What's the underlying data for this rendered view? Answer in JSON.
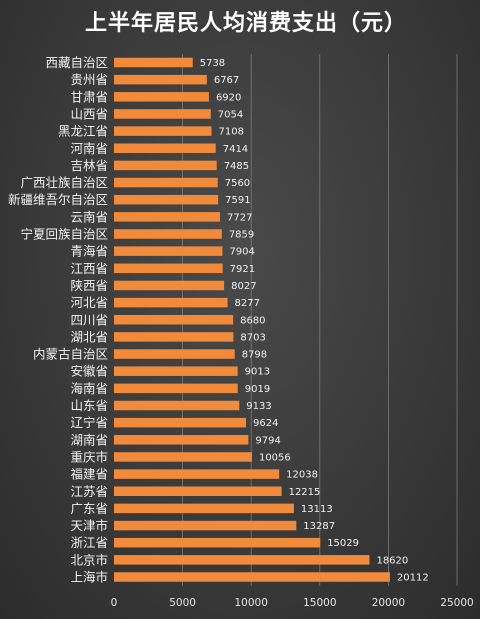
{
  "chart_data": {
    "type": "bar",
    "orientation": "horizontal",
    "title": "上半年居民人均消费支出（元）",
    "categories": [
      "西藏自治区",
      "贵州省",
      "甘肃省",
      "山西省",
      "黑龙江省",
      "河南省",
      "吉林省",
      "广西壮族自治区",
      "新疆维吾尔自治区",
      "云南省",
      "宁夏回族自治区",
      "青海省",
      "江西省",
      "陕西省",
      "河北省",
      "四川省",
      "湖北省",
      "内蒙古自治区",
      "安徽省",
      "海南省",
      "山东省",
      "辽宁省",
      "湖南省",
      "重庆市",
      "福建省",
      "江苏省",
      "广东省",
      "天津市",
      "浙江省",
      "北京市",
      "上海市"
    ],
    "values": [
      5738,
      6767,
      6920,
      7054,
      7108,
      7414,
      7485,
      7560,
      7591,
      7727,
      7859,
      7904,
      7921,
      8027,
      8277,
      8680,
      8703,
      8798,
      9013,
      9019,
      9133,
      9624,
      9794,
      10056,
      12038,
      12215,
      13113,
      13287,
      15029,
      18620,
      20112
    ],
    "x_ticks": [
      0,
      5000,
      10000,
      15000,
      20000,
      25000
    ],
    "xlim": [
      0,
      25000
    ],
    "bar_color": "#f28a3c",
    "grid": true,
    "legend": "none"
  }
}
